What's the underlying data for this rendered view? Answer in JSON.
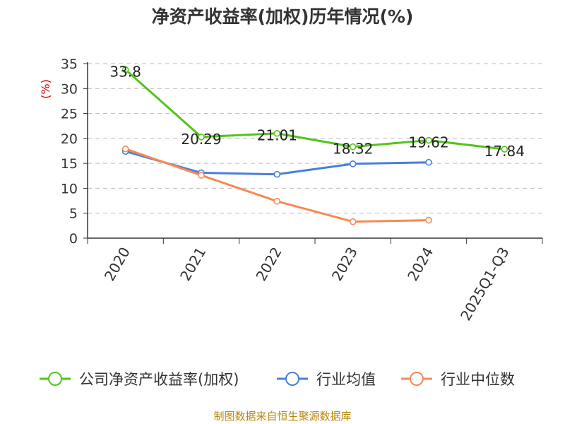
{
  "title": "净资产收益率(加权)历年情况(%)",
  "footer": "制图数据来自恒生聚源数据库",
  "chart_data": {
    "type": "line",
    "title": "净资产收益率(加权)历年情况(%)",
    "ylabel": "(%)",
    "ylim": [
      0,
      35
    ],
    "yticks": [
      0,
      5,
      10,
      15,
      20,
      25,
      30,
      35
    ],
    "grid": true,
    "legend_position": "bottom",
    "categories": [
      "2020",
      "2021",
      "2022",
      "2023",
      "2024",
      "2025Q1-Q3"
    ],
    "series": [
      {
        "name": "公司净资产收益率(加权)",
        "color": "#52c41a",
        "values": [
          33.8,
          20.29,
          21.01,
          18.32,
          19.62,
          17.84
        ],
        "labels": true
      },
      {
        "name": "行业均值",
        "color": "#4a7fd9",
        "values": [
          17.4,
          13.1,
          12.8,
          14.9,
          15.2,
          null
        ],
        "labels": false
      },
      {
        "name": "行业中位数",
        "color": "#f58a54",
        "values": [
          17.9,
          12.6,
          7.4,
          3.3,
          3.6,
          null
        ],
        "labels": false
      }
    ]
  }
}
